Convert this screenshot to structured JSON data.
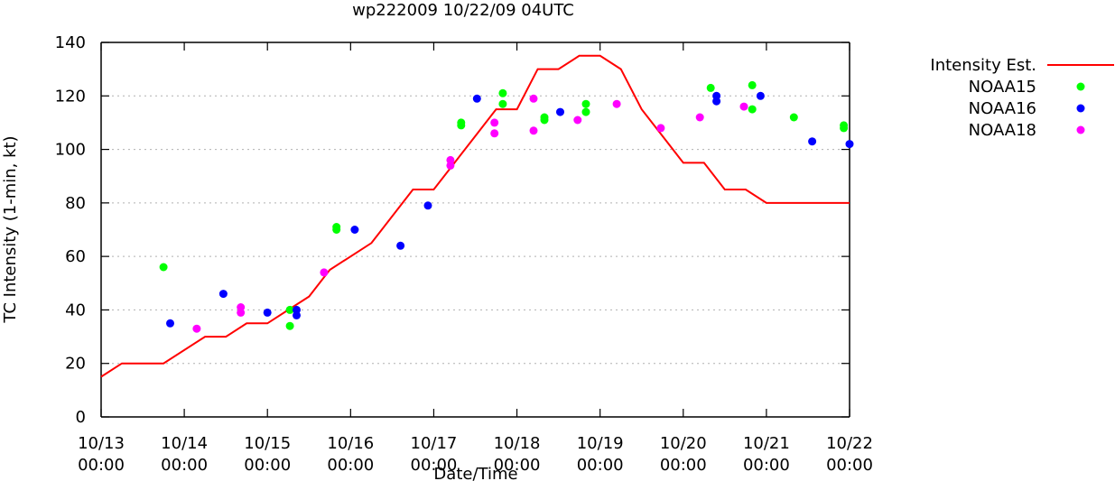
{
  "chart_data": {
    "type": "line",
    "title": "wp222009 10/22/09 04UTC",
    "xlabel": "Date/Time",
    "ylabel": "TC Intensity (1-min, kt)",
    "xlim": [
      0,
      9
    ],
    "ylim": [
      0,
      140
    ],
    "yticks": [
      0,
      20,
      40,
      60,
      80,
      100,
      120,
      140
    ],
    "xticks": [
      {
        "x": 0,
        "line1": "10/13",
        "line2": "00:00"
      },
      {
        "x": 1,
        "line1": "10/14",
        "line2": "00:00"
      },
      {
        "x": 2,
        "line1": "10/15",
        "line2": "00:00"
      },
      {
        "x": 3,
        "line1": "10/16",
        "line2": "00:00"
      },
      {
        "x": 4,
        "line1": "10/17",
        "line2": "00:00"
      },
      {
        "x": 5,
        "line1": "10/18",
        "line2": "00:00"
      },
      {
        "x": 6,
        "line1": "10/19",
        "line2": "00:00"
      },
      {
        "x": 7,
        "line1": "10/20",
        "line2": "00:00"
      },
      {
        "x": 8,
        "line1": "10/21",
        "line2": "00:00"
      },
      {
        "x": 9,
        "line1": "10/22",
        "line2": "00:00"
      }
    ],
    "x_units": "days since 10/13 00:00",
    "series": [
      {
        "name": "Intensity Est.",
        "kind": "line",
        "color": "#ff0000",
        "points": [
          [
            0,
            15
          ],
          [
            0.25,
            20
          ],
          [
            0.75,
            20
          ],
          [
            1.25,
            30
          ],
          [
            1.5,
            30
          ],
          [
            1.75,
            35
          ],
          [
            2,
            35
          ],
          [
            2.25,
            40
          ],
          [
            2.5,
            45
          ],
          [
            2.75,
            55
          ],
          [
            3.25,
            65
          ],
          [
            3.75,
            85
          ],
          [
            4,
            85
          ],
          [
            4.5,
            105
          ],
          [
            4.75,
            115
          ],
          [
            5,
            115
          ],
          [
            5.25,
            130
          ],
          [
            5.5,
            130
          ],
          [
            5.75,
            135
          ],
          [
            6,
            135
          ],
          [
            6.25,
            130
          ],
          [
            6.5,
            115
          ],
          [
            6.75,
            105
          ],
          [
            7,
            95
          ],
          [
            7.25,
            95
          ],
          [
            7.5,
            85
          ],
          [
            7.75,
            85
          ],
          [
            8,
            80
          ],
          [
            9,
            80
          ]
        ]
      },
      {
        "name": "NOAA15",
        "kind": "scatter",
        "color": "#00ff00",
        "points": [
          [
            0.75,
            56
          ],
          [
            2.27,
            40
          ],
          [
            2.27,
            34
          ],
          [
            2.83,
            71
          ],
          [
            2.83,
            70
          ],
          [
            4.33,
            110
          ],
          [
            4.33,
            109
          ],
          [
            4.83,
            121
          ],
          [
            4.83,
            117
          ],
          [
            5.33,
            112
          ],
          [
            5.33,
            111
          ],
          [
            5.83,
            117
          ],
          [
            5.83,
            114
          ],
          [
            7.33,
            123
          ],
          [
            7.83,
            124
          ],
          [
            7.83,
            115
          ],
          [
            8.33,
            112
          ],
          [
            8.93,
            109
          ],
          [
            8.93,
            108
          ]
        ]
      },
      {
        "name": "NOAA16",
        "kind": "scatter",
        "color": "#0000ff",
        "points": [
          [
            0.83,
            35
          ],
          [
            1.47,
            46
          ],
          [
            2,
            39
          ],
          [
            2.35,
            40
          ],
          [
            2.35,
            38
          ],
          [
            3.05,
            70
          ],
          [
            3.6,
            64
          ],
          [
            3.93,
            79
          ],
          [
            4.52,
            119
          ],
          [
            5.52,
            114
          ],
          [
            7.4,
            120
          ],
          [
            7.4,
            118
          ],
          [
            7.93,
            120
          ],
          [
            8.55,
            103
          ],
          [
            9,
            102
          ]
        ]
      },
      {
        "name": "NOAA18",
        "kind": "scatter",
        "color": "#ff00ff",
        "points": [
          [
            1.15,
            33
          ],
          [
            1.68,
            41
          ],
          [
            1.68,
            39
          ],
          [
            2.68,
            54
          ],
          [
            4.2,
            96
          ],
          [
            4.2,
            94
          ],
          [
            4.73,
            110
          ],
          [
            4.73,
            106
          ],
          [
            5.2,
            119
          ],
          [
            5.2,
            107
          ],
          [
            5.73,
            111
          ],
          [
            6.2,
            117
          ],
          [
            6.73,
            108
          ],
          [
            7.2,
            112
          ],
          [
            7.73,
            116
          ]
        ]
      }
    ],
    "legend_position": "right"
  }
}
